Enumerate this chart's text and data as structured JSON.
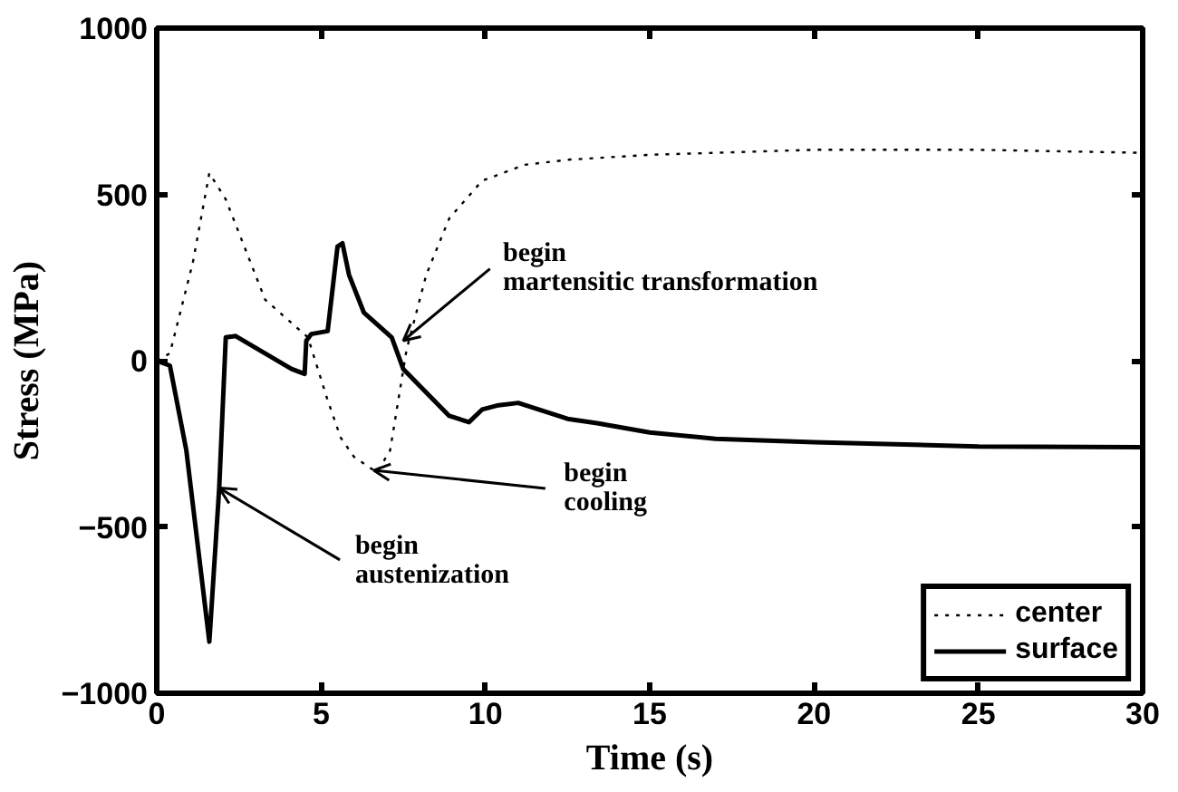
{
  "chart_data": {
    "type": "line",
    "xlabel": "Time (s)",
    "ylabel": "Stress (MPa)",
    "xlim": [
      0,
      30
    ],
    "ylim": [
      -1000,
      1000
    ],
    "xticks": [
      0,
      5,
      10,
      15,
      20,
      25,
      30
    ],
    "yticks": [
      -1000,
      -500,
      0,
      500,
      1000
    ],
    "grid": false,
    "legend": "bottom right",
    "series": [
      {
        "name": "center",
        "color": "#000000",
        "line_style": "dotted",
        "x": [
          0,
          0.4,
          1.1,
          1.6,
          2.1,
          3.3,
          4.6,
          5.2,
          5.6,
          6.0,
          6.7,
          7.1,
          7.6,
          8.2,
          8.9,
          9.9,
          11.2,
          12.5,
          15,
          20,
          25,
          30
        ],
        "values": [
          0,
          22,
          296,
          564,
          485,
          183,
          70,
          -119,
          -232,
          -289,
          -336,
          -270,
          32,
          258,
          428,
          541,
          589,
          604,
          619,
          634,
          634,
          625
        ]
      },
      {
        "name": "surface",
        "color": "#000000",
        "line_style": "solid",
        "x": [
          0,
          0.4,
          0.9,
          1.6,
          1.9,
          2.1,
          2.4,
          4.1,
          4.5,
          4.55,
          4.7,
          5.2,
          5.5,
          5.65,
          5.85,
          6.3,
          7.15,
          7.5,
          8.9,
          9.5,
          9.9,
          10.4,
          11.0,
          12.5,
          13.4,
          15,
          17,
          20,
          25,
          30
        ],
        "values": [
          0,
          -15,
          -270,
          -845,
          -383,
          70,
          74,
          -25,
          -40,
          60,
          80,
          89,
          343,
          353,
          258,
          145,
          70,
          -25,
          -166,
          -185,
          -147,
          -134,
          -127,
          -175,
          -188,
          -216,
          -235,
          -245,
          -258,
          -260
        ]
      }
    ],
    "annotations": [
      {
        "text": "begin\naustenization",
        "x": 1.9,
        "y": -383
      },
      {
        "text": "begin\ncooling",
        "x": 6.6,
        "y": -330
      },
      {
        "text": "begin\nmartensitic transformation",
        "x": 7.5,
        "y": 60
      }
    ]
  }
}
